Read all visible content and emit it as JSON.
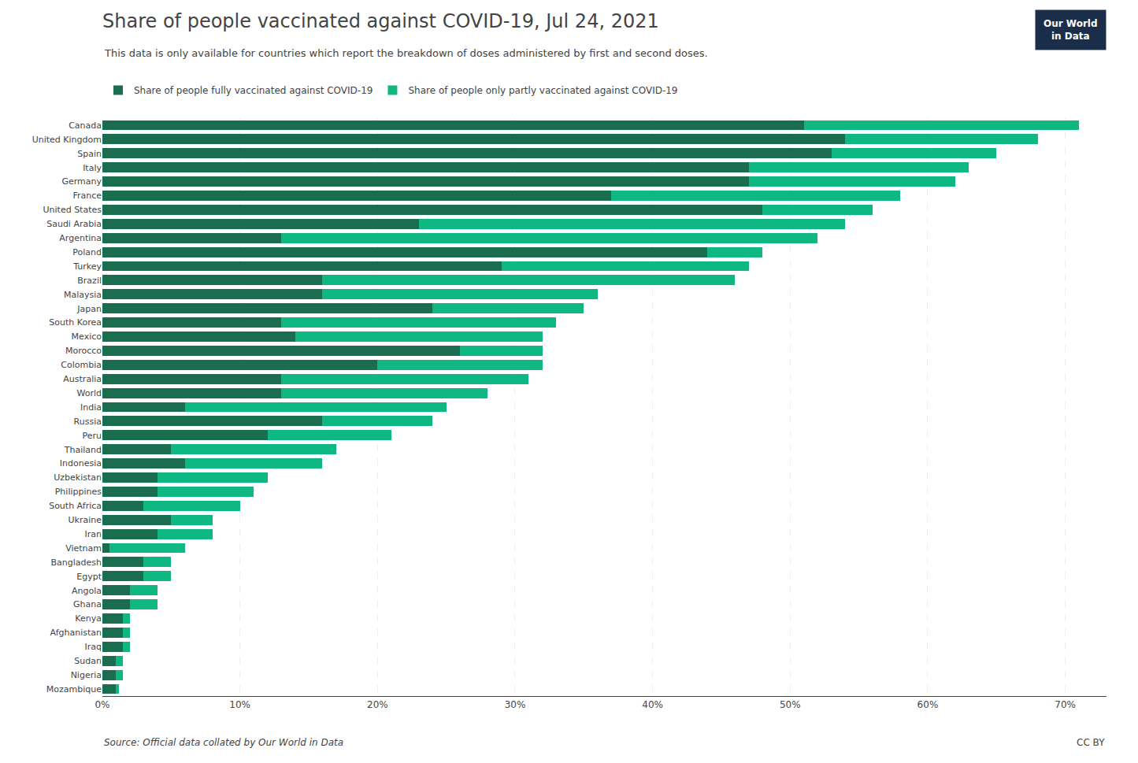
{
  "chart_data": {
    "type": "bar",
    "orientation": "horizontal",
    "stacked": true,
    "title": "Share of people vaccinated against COVID-19, Jul 24, 2021",
    "subtitle": "This data is only available for countries which report the breakdown of doses administered by first and second doses.",
    "source": "Source: Official data collated by Our World in Data",
    "credit": "CC BY",
    "logo": {
      "text": [
        "Our World",
        "in Data"
      ],
      "color": "#1a2e4a"
    },
    "categories": [
      "Canada",
      "United Kingdom",
      "Spain",
      "Italy",
      "Germany",
      "France",
      "United States",
      "Saudi Arabia",
      "Argentina",
      "Poland",
      "Turkey",
      "Brazil",
      "Malaysia",
      "Japan",
      "South Korea",
      "Mexico",
      "Morocco",
      "Colombia",
      "Australia",
      "World",
      "India",
      "Russia",
      "Peru",
      "Thailand",
      "Indonesia",
      "Uzbekistan",
      "Philippines",
      "South Africa",
      "Ukraine",
      "Iran",
      "Vietnam",
      "Bangladesh",
      "Egypt",
      "Angola",
      "Ghana",
      "Kenya",
      "Afghanistan",
      "Iraq",
      "Sudan",
      "Nigeria",
      "Mozambique"
    ],
    "series": [
      {
        "name": "Share of people fully vaccinated against COVID-19",
        "color": "#1a6e4f",
        "values": [
          51.0,
          54.0,
          53.0,
          47.0,
          47.0,
          37.0,
          48.0,
          23.0,
          13.0,
          44.0,
          29.0,
          16.0,
          16.0,
          24.0,
          13.0,
          14.0,
          26.0,
          20.0,
          13.0,
          13.0,
          6.0,
          16.0,
          12.0,
          5.0,
          6.0,
          4.0,
          4.0,
          3.0,
          5.0,
          4.0,
          0.5,
          3.0,
          3.0,
          2.0,
          2.0,
          1.5,
          1.5,
          1.5,
          1.0,
          1.0,
          1.0
        ]
      },
      {
        "name": "Share of people only partly vaccinated against COVID-19",
        "color": "#0fb882",
        "values": [
          20.0,
          14.0,
          12.0,
          16.0,
          15.0,
          21.0,
          8.0,
          31.0,
          39.0,
          4.0,
          18.0,
          30.0,
          20.0,
          11.0,
          20.0,
          18.0,
          6.0,
          12.0,
          18.0,
          15.0,
          19.0,
          8.0,
          9.0,
          12.0,
          10.0,
          8.0,
          7.0,
          7.0,
          3.0,
          4.0,
          5.5,
          2.0,
          2.0,
          2.0,
          2.0,
          0.5,
          0.5,
          0.5,
          0.5,
          0.5,
          0.2
        ]
      }
    ],
    "xlim": [
      0,
      73
    ],
    "xticks": [
      {
        "value": 0,
        "label": "0%"
      },
      {
        "value": 10,
        "label": "10%"
      },
      {
        "value": 20,
        "label": "20%"
      },
      {
        "value": 30,
        "label": "30%"
      },
      {
        "value": 40,
        "label": "40%"
      },
      {
        "value": 50,
        "label": "50%"
      },
      {
        "value": 60,
        "label": "60%"
      },
      {
        "value": 70,
        "label": "70%"
      }
    ],
    "grid": true,
    "legend": "upper left"
  }
}
